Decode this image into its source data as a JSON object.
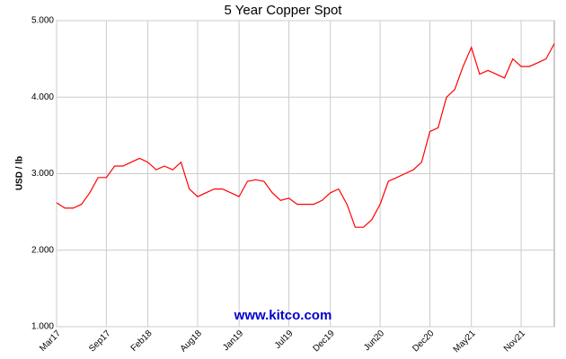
{
  "chart_data": {
    "type": "line",
    "title": "5 Year Copper Spot",
    "y_label": "USD / lb",
    "watermark": "www.kitco.com",
    "categories": [
      "Mar17",
      null,
      null,
      null,
      null,
      null,
      "Sep17",
      null,
      null,
      null,
      null,
      "Feb18",
      null,
      null,
      null,
      null,
      null,
      "Aug18",
      null,
      null,
      null,
      null,
      "Jan19",
      null,
      null,
      null,
      null,
      null,
      "Jul19",
      null,
      null,
      null,
      null,
      "Dec19",
      null,
      null,
      null,
      null,
      null,
      "Jun20",
      null,
      null,
      null,
      null,
      null,
      "Dec20",
      null,
      null,
      null,
      null,
      "May21",
      null,
      null,
      null,
      null,
      null,
      "Nov21",
      null,
      null,
      null,
      null
    ],
    "series": [
      {
        "name": "Copper",
        "color": "#ff0000",
        "values": [
          2.62,
          2.55,
          2.55,
          2.6,
          2.75,
          2.95,
          2.95,
          3.1,
          3.1,
          3.15,
          3.2,
          3.15,
          3.05,
          3.1,
          3.05,
          3.15,
          2.8,
          2.7,
          2.75,
          2.8,
          2.8,
          2.75,
          2.7,
          2.9,
          2.92,
          2.9,
          2.75,
          2.65,
          2.68,
          2.6,
          2.6,
          2.6,
          2.65,
          2.75,
          2.8,
          2.6,
          2.3,
          2.3,
          2.4,
          2.6,
          2.9,
          2.95,
          3.0,
          3.05,
          3.15,
          3.55,
          3.6,
          4.0,
          4.1,
          4.4,
          4.65,
          4.3,
          4.35,
          4.3,
          4.25,
          4.5,
          4.4,
          4.4,
          4.45,
          4.5,
          4.7
        ]
      }
    ],
    "ylim": [
      1,
      5
    ],
    "yticks": [
      {
        "value": 1,
        "label": "1.000"
      },
      {
        "value": 2,
        "label": "2.000"
      },
      {
        "value": 3,
        "label": "3.000"
      },
      {
        "value": 4,
        "label": "4.000"
      },
      {
        "value": 5,
        "label": "5.000"
      }
    ],
    "grid": true
  }
}
